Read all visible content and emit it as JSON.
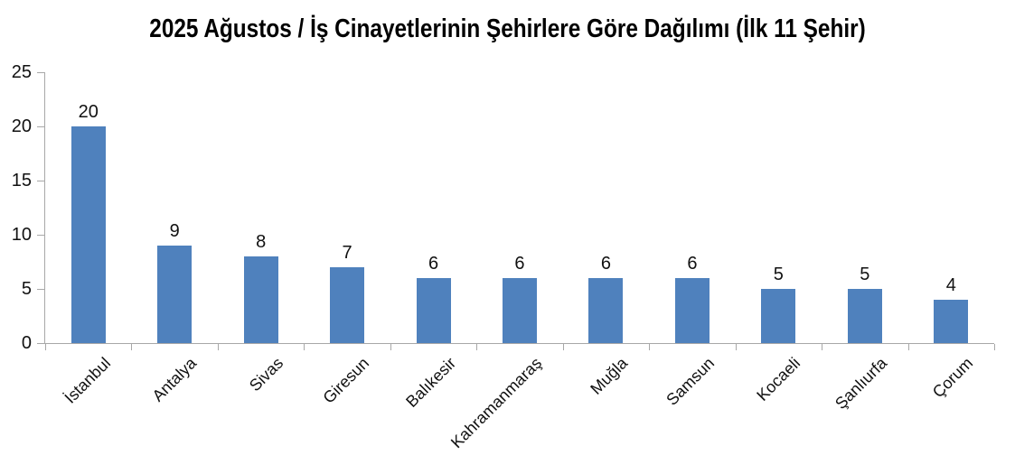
{
  "title": "2025 Ağustos / İş Cinayetlerinin Şehirlere Göre Dağılımı (İlk 11 Şehir)",
  "chart_data": {
    "type": "bar",
    "title": "2025 Ağustos / İş Cinayetlerinin Şehirlere Göre Dağılımı (İlk 11 Şehir)",
    "categories": [
      "İstanbul",
      "Antalya",
      "Sivas",
      "Giresun",
      "Balıkesir",
      "Kahramanmaraş",
      "Muğla",
      "Samsun",
      "Kocaeli",
      "Şanlıurfa",
      "Çorum"
    ],
    "values": [
      20,
      9,
      8,
      7,
      6,
      6,
      6,
      6,
      5,
      5,
      4
    ],
    "xlabel": "",
    "ylabel": "",
    "ylim": [
      0,
      25
    ],
    "yticks": [
      0,
      5,
      10,
      15,
      20,
      25
    ],
    "grid": false,
    "legend": false,
    "data_labels_shown": true,
    "colors": {
      "bar": "#4F81BD",
      "axis": "#A8A8A8",
      "text": "#111111",
      "background": "#FFFFFF"
    }
  }
}
